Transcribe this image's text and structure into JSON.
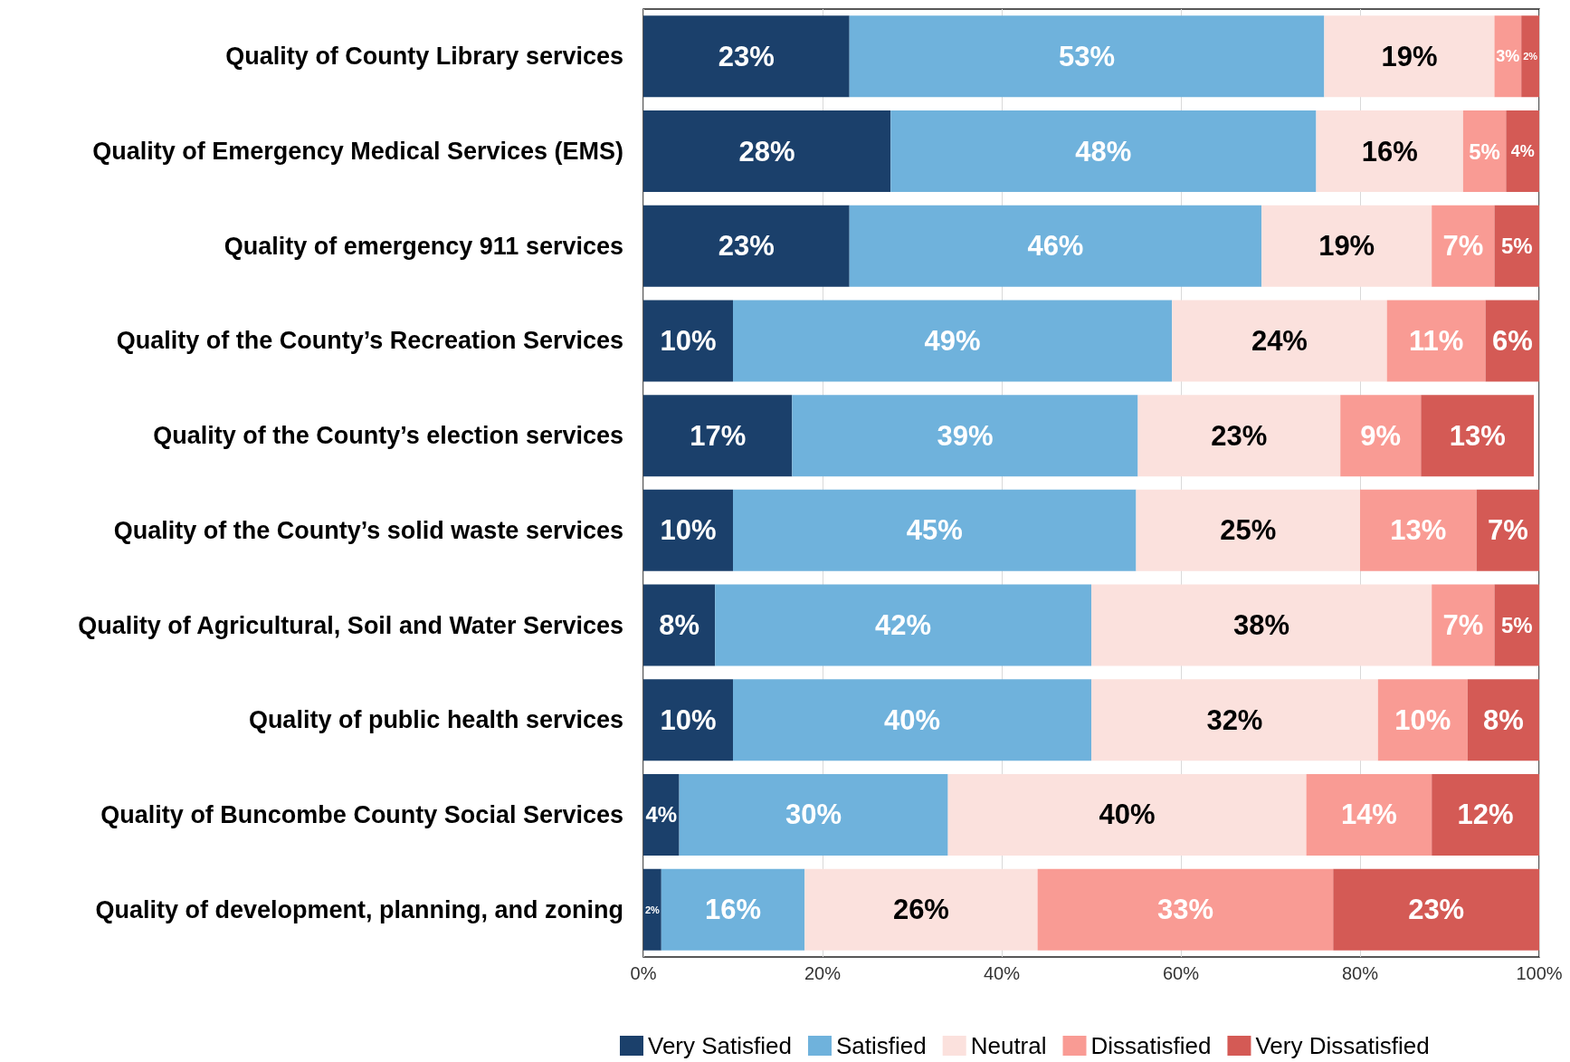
{
  "chart_data": {
    "type": "bar",
    "orientation": "horizontal",
    "stacked": true,
    "categories": [
      "Quality of County Library services",
      "Quality of Emergency Medical Services (EMS)",
      "Quality of emergency 911 services",
      "Quality of the County’s Recreation Services",
      "Quality of the County’s election services",
      "Quality of the County’s solid waste services",
      "Quality of Agricultural, Soil and Water Services",
      "Quality of public health services",
      "Quality of Buncombe County Social Services",
      "Quality of development, planning, and zoning"
    ],
    "series": [
      {
        "name": "Very Satisfied",
        "color": "#1b406b",
        "values": [
          23,
          27.6,
          23,
          10,
          16.6,
          10,
          8,
          10,
          4,
          2
        ],
        "value_labels": [
          "23%",
          "28%",
          "23%",
          "10%",
          "17%",
          "10%",
          "8%",
          "10%",
          "4%",
          "2%"
        ]
      },
      {
        "name": "Satisfied",
        "color": "#6fb2dc",
        "values": [
          53,
          47.5,
          46,
          49,
          38.6,
          45,
          42,
          40,
          30,
          16
        ],
        "value_labels": [
          "53%",
          "48%",
          "46%",
          "49%",
          "39%",
          "45%",
          "42%",
          "40%",
          "30%",
          "16%"
        ]
      },
      {
        "name": "Neutral",
        "color": "#fbe1dd",
        "values": [
          19,
          16.4,
          19,
          24,
          22.6,
          25,
          38,
          32,
          40,
          26
        ],
        "value_labels": [
          "19%",
          "16%",
          "19%",
          "24%",
          "23%",
          "25%",
          "38%",
          "32%",
          "40%",
          "26%"
        ]
      },
      {
        "name": "Dissatisfied",
        "color": "#f99b94",
        "values": [
          3,
          4.8,
          7,
          11,
          9,
          13,
          7,
          10,
          14,
          33
        ],
        "value_labels": [
          "3%",
          "5%",
          "7%",
          "11%",
          "9%",
          "13%",
          "7%",
          "10%",
          "14%",
          "33%"
        ]
      },
      {
        "name": "Very Dissatisfied",
        "color": "#d45a55",
        "values": [
          2,
          3.7,
          5,
          6,
          12.6,
          7,
          5,
          8,
          12,
          23
        ],
        "value_labels": [
          "2%",
          "4%",
          "5%",
          "6%",
          "13%",
          "7%",
          "5%",
          "8%",
          "12%",
          "23%"
        ]
      }
    ],
    "xlim": [
      0,
      100
    ],
    "xticks": [
      {
        "value": 0,
        "label": "0%"
      },
      {
        "value": 20,
        "label": "20%"
      },
      {
        "value": 40,
        "label": "40%"
      },
      {
        "value": 60,
        "label": "60%"
      },
      {
        "value": 80,
        "label": "80%"
      },
      {
        "value": 100,
        "label": "100%"
      }
    ],
    "grid": "x",
    "legend": "bottom"
  }
}
